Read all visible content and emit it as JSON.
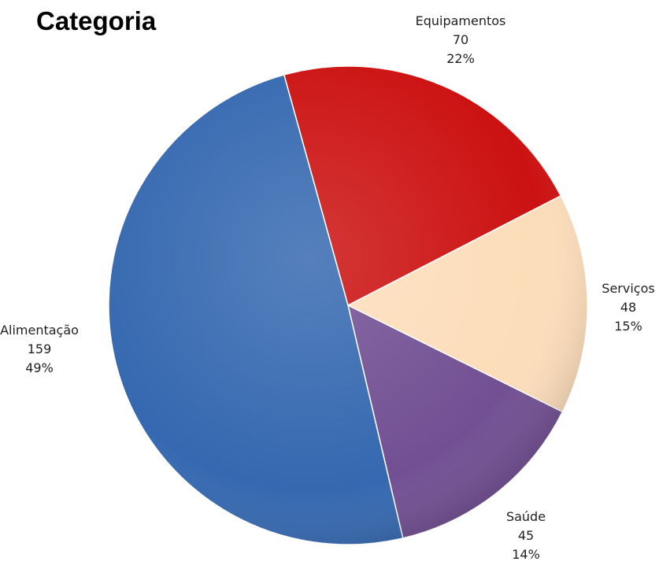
{
  "chart_data": {
    "type": "pie",
    "title": "Categoria",
    "start_angle_deg": -15.5,
    "slices": [
      {
        "label": "Equipamentos",
        "value": 70,
        "percent": "22%",
        "color": "#CC1111"
      },
      {
        "label": "Serviços",
        "value": 48,
        "percent": "15%",
        "color": "#FCDDBA"
      },
      {
        "label": "Saúde",
        "value": 45,
        "percent": "14%",
        "color": "#724F93"
      },
      {
        "label": "Alimentação",
        "value": 159,
        "percent": "49%",
        "color": "#3568B0"
      }
    ]
  }
}
